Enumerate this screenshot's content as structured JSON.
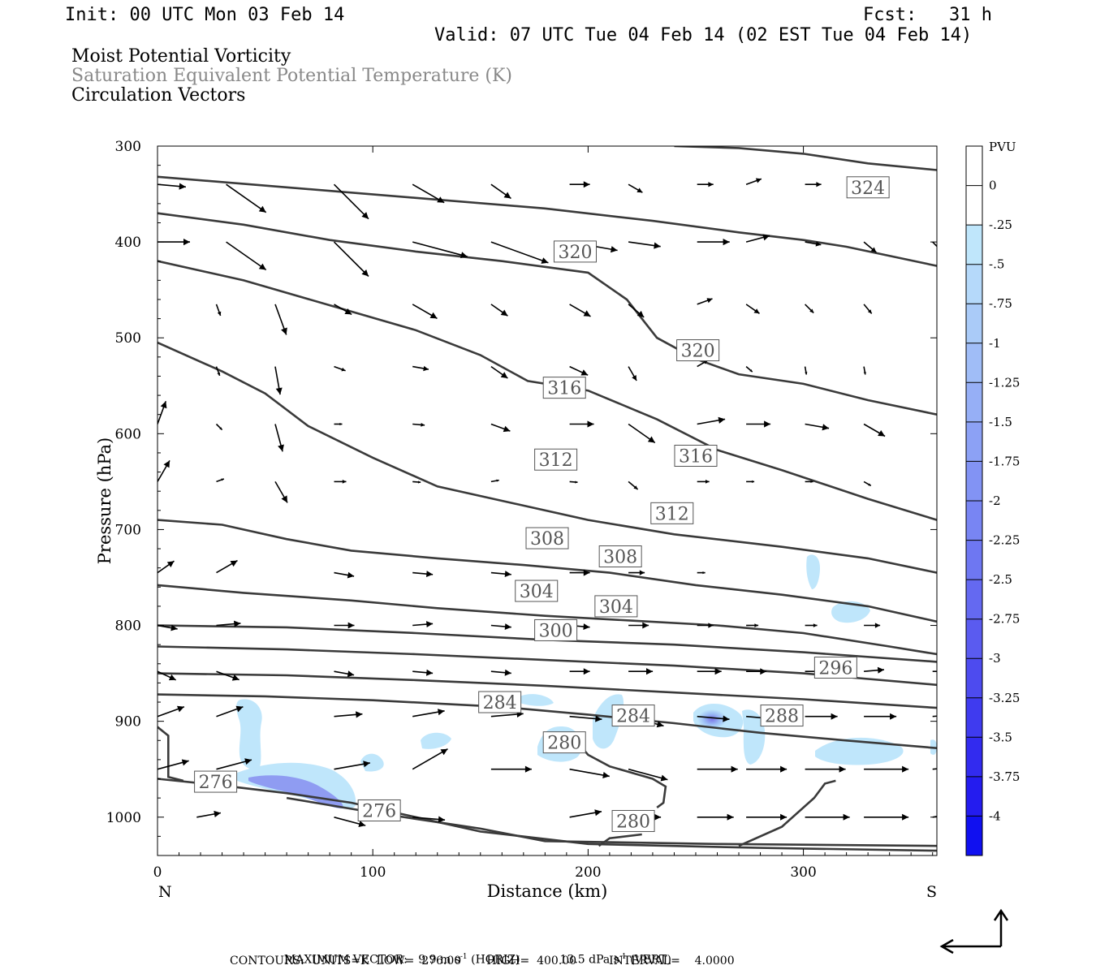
{
  "header": {
    "init": "Init: 00 UTC Mon 03 Feb 14",
    "fcst": "Fcst:   31 h",
    "valid": "Valid: 07 UTC Tue 04 Feb 14 (02 EST Tue 04 Feb 14)"
  },
  "fields": {
    "f1": "Moist Potential Vorticity",
    "f2": "Saturation Equivalent Potential Temperature (K)",
    "f3": "Circulation Vectors"
  },
  "colors": {
    "f2_text": "#888888",
    "contour": "#3a3a3a",
    "arrow": "#000000"
  },
  "footer": {
    "maxvec_label": "MAXIMUM VECTOR:",
    "maxvec_h_value": "9.9",
    "maxvec_h_unit": "m s",
    "maxvec_h_exp": "-1",
    "maxvec_h_tag": "(HORIZ)",
    "maxvec_v_value": "13.5",
    "maxvec_v_unit": "dPa s",
    "maxvec_v_exp": "-1",
    "maxvec_v_tag": "(VERT)",
    "contours": "CONTOURS:  UNITS=K  LOW=  276.00       HIGH=  400.00         INTERVAL=    4.0000"
  },
  "chart_data": {
    "type": "contour",
    "xlabel": "Distance (km)",
    "ylabel": "Pressure (hPa)",
    "xlim": [
      0,
      362
    ],
    "ylim": [
      1040,
      300
    ],
    "xticks": [
      0,
      100,
      200,
      300
    ],
    "yticks": [
      300,
      400,
      500,
      600,
      700,
      800,
      900,
      1000
    ],
    "x_end_left": "N",
    "x_end_right": "S",
    "colorbar": {
      "unit": "PVU",
      "labels": [
        "0",
        "-.25",
        "-.5",
        "-.75",
        "-1",
        "-1.25",
        "-1.5",
        "-1.75",
        "-2",
        "-2.25",
        "-2.5",
        "-2.75",
        "-3",
        "-3.25",
        "-3.5",
        "-3.75",
        "-4"
      ],
      "colors": [
        "#ffffff",
        "#ffffff",
        "#bfe6fb",
        "#b5d9fa",
        "#aacbf8",
        "#a0bdf7",
        "#96aff6",
        "#8ca1f5",
        "#8293f4",
        "#7885f3",
        "#6e77f2",
        "#6469f1",
        "#5a5bf0",
        "#4d4bef",
        "#3f3bef",
        "#322bef",
        "#241cef",
        "#1010f0"
      ]
    },
    "contour_labels": [
      {
        "value": "324",
        "x": 330,
        "p": 343
      },
      {
        "value": "320",
        "x": 194,
        "p": 410
      },
      {
        "value": "320",
        "x": 251,
        "p": 513
      },
      {
        "value": "316",
        "x": 189,
        "p": 552
      },
      {
        "value": "316",
        "x": 250,
        "p": 623
      },
      {
        "value": "312",
        "x": 185,
        "p": 627
      },
      {
        "value": "312",
        "x": 239,
        "p": 683
      },
      {
        "value": "308",
        "x": 181,
        "p": 709
      },
      {
        "value": "308",
        "x": 215,
        "p": 728
      },
      {
        "value": "304",
        "x": 176,
        "p": 764
      },
      {
        "value": "304",
        "x": 213,
        "p": 780
      },
      {
        "value": "300",
        "x": 185,
        "p": 805
      },
      {
        "value": "296",
        "x": 315,
        "p": 844
      },
      {
        "value": "288",
        "x": 290,
        "p": 894
      },
      {
        "value": "284",
        "x": 159,
        "p": 880
      },
      {
        "value": "284",
        "x": 221,
        "p": 894
      },
      {
        "value": "280",
        "x": 189,
        "p": 922
      },
      {
        "value": "280",
        "x": 221,
        "p": 1004
      },
      {
        "value": "276",
        "x": 27,
        "p": 963
      },
      {
        "value": "276",
        "x": 103,
        "p": 993
      }
    ]
  }
}
